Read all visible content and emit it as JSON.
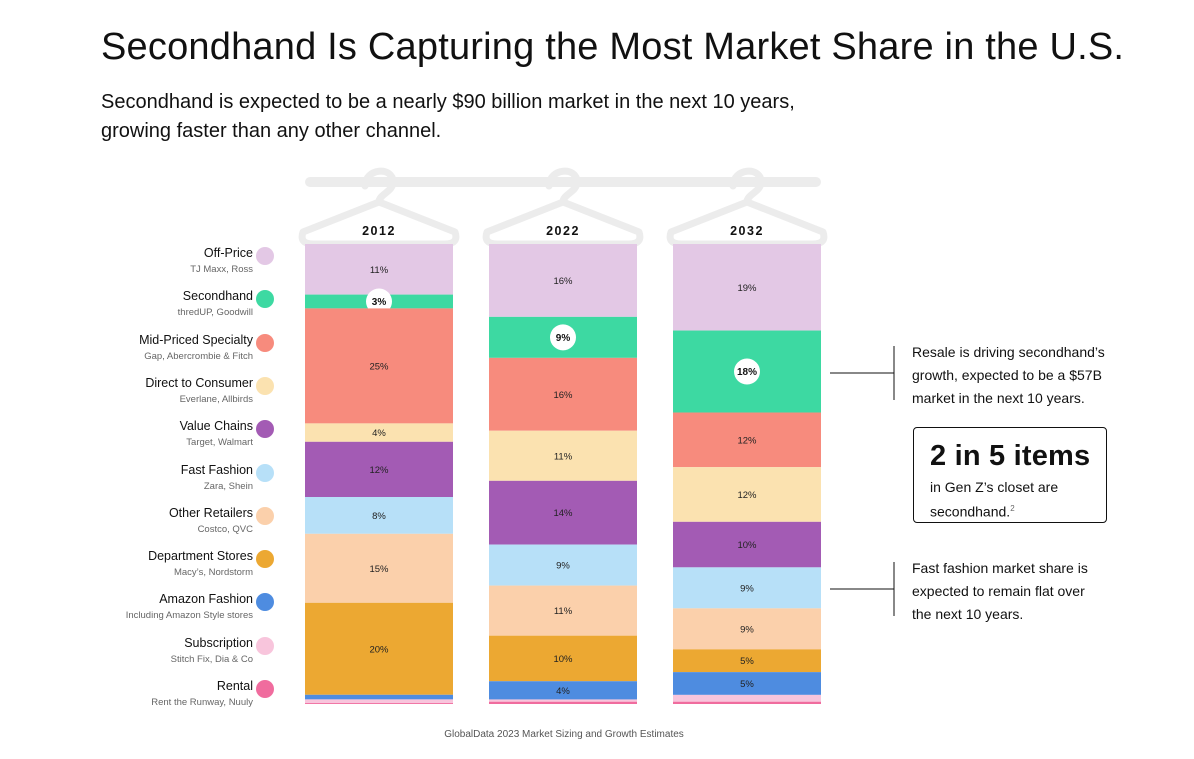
{
  "title": "Secondhand Is Capturing the Most Market Share in the U.S.",
  "subtitle_line1": "Secondhand is expected to be a nearly $90 billion market in the next 10 years,",
  "subtitle_line2": "growing faster than any other channel.",
  "legend": [
    {
      "name": "Off-Price",
      "sub": "TJ Maxx, Ross",
      "color": "#E3C8E5"
    },
    {
      "name": "Secondhand",
      "sub": "thredUP, Goodwill",
      "color": "#3DD9A2"
    },
    {
      "name": "Mid-Priced Specialty",
      "sub": "Gap, Abercrombie & Fitch",
      "color": "#F78B7D"
    },
    {
      "name": "Direct to Consumer",
      "sub": "Everlane, Allbirds",
      "color": "#FBE2B0"
    },
    {
      "name": "Value Chains",
      "sub": "Target, Walmart",
      "color": "#A35BB4"
    },
    {
      "name": "Fast Fashion",
      "sub": "Zara, Shein",
      "color": "#B7E0F8"
    },
    {
      "name": "Other Retailers",
      "sub": "Costco, QVC",
      "color": "#FBD0AB"
    },
    {
      "name": "Department Stores",
      "sub": "Macy’s, Nordstorm",
      "color": "#ECA832"
    },
    {
      "name": "Amazon Fashion",
      "sub": "Including Amazon Style stores",
      "color": "#4E8CE0"
    },
    {
      "name": "Subscription",
      "sub": "Stitch Fix, Dia & Co",
      "color": "#F8C5DC"
    },
    {
      "name": "Rental",
      "sub": "Rent the Runway, Nuuly",
      "color": "#F06C9E"
    }
  ],
  "chart_data": {
    "type": "bar",
    "stacked": true,
    "normalized_percent": true,
    "categories": [
      "2012",
      "2022",
      "2032"
    ],
    "series": [
      {
        "name": "Off-Price",
        "values": [
          11,
          16,
          19
        ],
        "labels": [
          "11%",
          "16%",
          "19%"
        ]
      },
      {
        "name": "Secondhand",
        "values": [
          3,
          9,
          18
        ],
        "labels": [
          "3%",
          "9%",
          "18%"
        ]
      },
      {
        "name": "Mid-Priced Specialty",
        "values": [
          25,
          16,
          12
        ],
        "labels": [
          "25%",
          "16%",
          "12%"
        ]
      },
      {
        "name": "Direct to Consumer",
        "values": [
          4,
          11,
          12
        ],
        "labels": [
          "4%",
          "11%",
          "12%"
        ]
      },
      {
        "name": "Value Chains",
        "values": [
          12,
          14,
          10
        ],
        "labels": [
          "12%",
          "14%",
          "10%"
        ]
      },
      {
        "name": "Fast Fashion",
        "values": [
          8,
          9,
          9
        ],
        "labels": [
          "8%",
          "9%",
          "9%"
        ]
      },
      {
        "name": "Other Retailers",
        "values": [
          15,
          11,
          9
        ],
        "labels": [
          "15%",
          "11%",
          "9%"
        ]
      },
      {
        "name": "Department Stores",
        "values": [
          20,
          10,
          5
        ],
        "labels": [
          "20%",
          "10%",
          "5%"
        ]
      },
      {
        "name": "Amazon Fashion",
        "values": [
          1,
          4,
          5
        ],
        "labels": [
          "",
          "4%",
          "5%"
        ]
      },
      {
        "name": "Subscription",
        "values": [
          0.8,
          0.5,
          1.5
        ],
        "labels": [
          "",
          "",
          ""
        ]
      },
      {
        "name": "Rental",
        "values": [
          0.2,
          0.5,
          0.5
        ],
        "labels": [
          "",
          "",
          ""
        ]
      }
    ],
    "highlight_series": "Secondhand"
  },
  "annotations": {
    "resale": [
      "Resale is driving secondhand’s",
      "growth, expected to be a $57B",
      "market in the next 10 years."
    ],
    "fast_fashion": [
      "Fast fashion market share is",
      "expected to remain flat over",
      "the next 10 years."
    ]
  },
  "callout": {
    "big": "2 in 5 items",
    "line1": "in Gen Z’s closet are",
    "line2": "secondhand.",
    "footnote": "2"
  },
  "source": "GlobalData 2023 Market Sizing and Growth Estimates"
}
